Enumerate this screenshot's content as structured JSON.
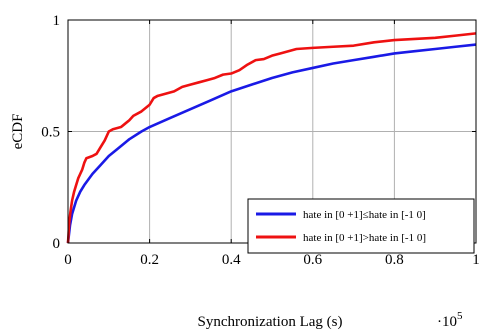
{
  "chart_data": {
    "type": "line",
    "title": "",
    "xlabel": "Synchronization Lag (s)",
    "ylabel": "eCDF",
    "x_scale_label": "·10",
    "x_scale_exponent": "5",
    "xlim": [
      0,
      1
    ],
    "ylim": [
      0,
      1
    ],
    "x_ticks": [
      0,
      0.2,
      0.4,
      0.6,
      0.8,
      1
    ],
    "x_tick_labels": [
      "0",
      "0.2",
      "0.4",
      "0.6",
      "0.8",
      "1"
    ],
    "y_ticks": [
      0,
      0.5,
      1
    ],
    "y_tick_labels": [
      "0",
      "0.5",
      "1"
    ],
    "grid": true,
    "legend_position": "bottom-right",
    "series": [
      {
        "name": "hate in [0 +1]≤hate in [-1 0]",
        "color": "#1a1ae6",
        "points": [
          [
            0,
            0
          ],
          [
            0.005,
            0.08
          ],
          [
            0.01,
            0.13
          ],
          [
            0.02,
            0.19
          ],
          [
            0.03,
            0.23
          ],
          [
            0.04,
            0.26
          ],
          [
            0.06,
            0.31
          ],
          [
            0.08,
            0.35
          ],
          [
            0.1,
            0.39
          ],
          [
            0.12,
            0.42
          ],
          [
            0.15,
            0.465
          ],
          [
            0.18,
            0.5
          ],
          [
            0.2,
            0.52
          ],
          [
            0.25,
            0.56
          ],
          [
            0.3,
            0.6
          ],
          [
            0.35,
            0.64
          ],
          [
            0.4,
            0.68
          ],
          [
            0.45,
            0.71
          ],
          [
            0.5,
            0.74
          ],
          [
            0.55,
            0.765
          ],
          [
            0.6,
            0.785
          ],
          [
            0.65,
            0.805
          ],
          [
            0.7,
            0.82
          ],
          [
            0.75,
            0.835
          ],
          [
            0.8,
            0.85
          ],
          [
            0.85,
            0.86
          ],
          [
            0.9,
            0.87
          ],
          [
            0.95,
            0.88
          ],
          [
            1,
            0.89
          ]
        ]
      },
      {
        "name": "hate in [0 +1]>hate in [-1 0]",
        "color": "#ee1111",
        "points": [
          [
            0,
            0
          ],
          [
            0.003,
            0.09
          ],
          [
            0.006,
            0.14
          ],
          [
            0.01,
            0.19
          ],
          [
            0.015,
            0.23
          ],
          [
            0.02,
            0.26
          ],
          [
            0.025,
            0.29
          ],
          [
            0.03,
            0.31
          ],
          [
            0.035,
            0.33
          ],
          [
            0.04,
            0.36
          ],
          [
            0.045,
            0.38
          ],
          [
            0.06,
            0.39
          ],
          [
            0.07,
            0.4
          ],
          [
            0.08,
            0.43
          ],
          [
            0.09,
            0.46
          ],
          [
            0.1,
            0.5
          ],
          [
            0.11,
            0.51
          ],
          [
            0.13,
            0.52
          ],
          [
            0.14,
            0.535
          ],
          [
            0.15,
            0.55
          ],
          [
            0.16,
            0.57
          ],
          [
            0.18,
            0.59
          ],
          [
            0.2,
            0.62
          ],
          [
            0.21,
            0.65
          ],
          [
            0.22,
            0.66
          ],
          [
            0.24,
            0.67
          ],
          [
            0.26,
            0.68
          ],
          [
            0.28,
            0.7
          ],
          [
            0.3,
            0.71
          ],
          [
            0.32,
            0.72
          ],
          [
            0.34,
            0.73
          ],
          [
            0.36,
            0.74
          ],
          [
            0.38,
            0.755
          ],
          [
            0.4,
            0.76
          ],
          [
            0.42,
            0.775
          ],
          [
            0.44,
            0.8
          ],
          [
            0.46,
            0.82
          ],
          [
            0.48,
            0.825
          ],
          [
            0.5,
            0.84
          ],
          [
            0.52,
            0.85
          ],
          [
            0.54,
            0.86
          ],
          [
            0.56,
            0.87
          ],
          [
            0.6,
            0.875
          ],
          [
            0.65,
            0.88
          ],
          [
            0.7,
            0.885
          ],
          [
            0.75,
            0.9
          ],
          [
            0.8,
            0.91
          ],
          [
            0.85,
            0.915
          ],
          [
            0.9,
            0.92
          ],
          [
            0.95,
            0.93
          ],
          [
            1,
            0.94
          ]
        ]
      }
    ]
  }
}
